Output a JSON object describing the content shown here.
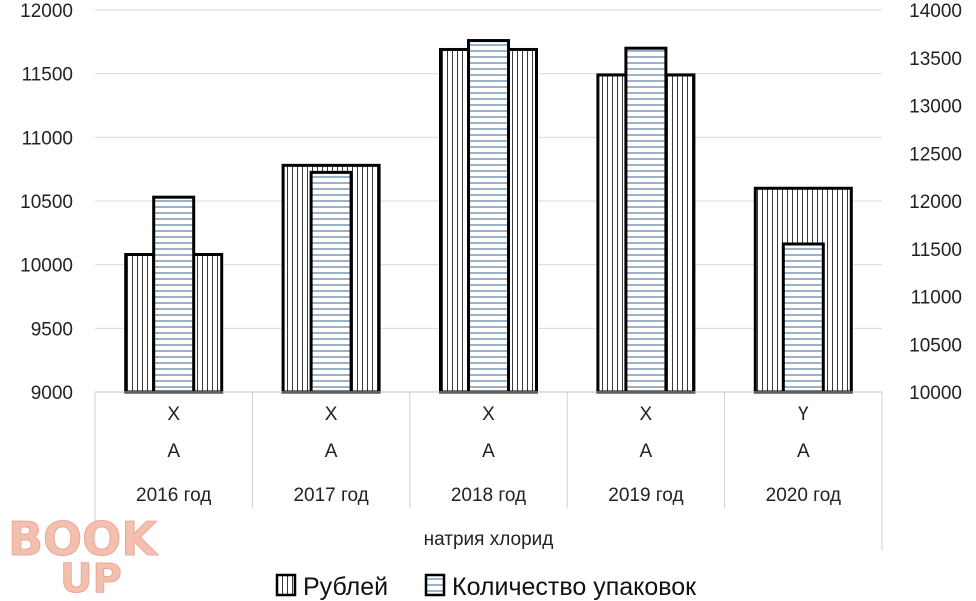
{
  "chart_data": {
    "type": "bar",
    "categories": [
      "2016 год",
      "2017 год",
      "2018 год",
      "2019 год",
      "2020 год"
    ],
    "category_sublabels": [
      "Х",
      "Х",
      "Х",
      "Х",
      "Ү"
    ],
    "category_letters": [
      "А",
      "А",
      "А",
      "А",
      "А"
    ],
    "group_label": "натрия хлорид",
    "series": [
      {
        "name": "Рублей",
        "axis": "left",
        "values": [
          10080,
          10780,
          11690,
          11490,
          10600
        ],
        "pattern": "vertical-lines"
      },
      {
        "name": "Количество упаковок",
        "axis": "right",
        "values": [
          12040,
          12300,
          13680,
          13600,
          11550
        ],
        "pattern": "horizontal-lines"
      }
    ],
    "y_left": {
      "min": 9000,
      "max": 12000,
      "ticks": [
        "9000",
        "9500",
        "10000",
        "10500",
        "11000",
        "11500",
        "12000"
      ]
    },
    "y_right": {
      "min": 10000,
      "max": 14000,
      "ticks": [
        "10000",
        "10500",
        "11000",
        "11500",
        "12000",
        "12500",
        "13000",
        "13500",
        "14000"
      ]
    },
    "grid": true,
    "legend_position": "bottom",
    "xlabel": "",
    "ylabel": "",
    "title": ""
  },
  "watermark": {
    "line1": "BOOK",
    "line2": "UP"
  }
}
